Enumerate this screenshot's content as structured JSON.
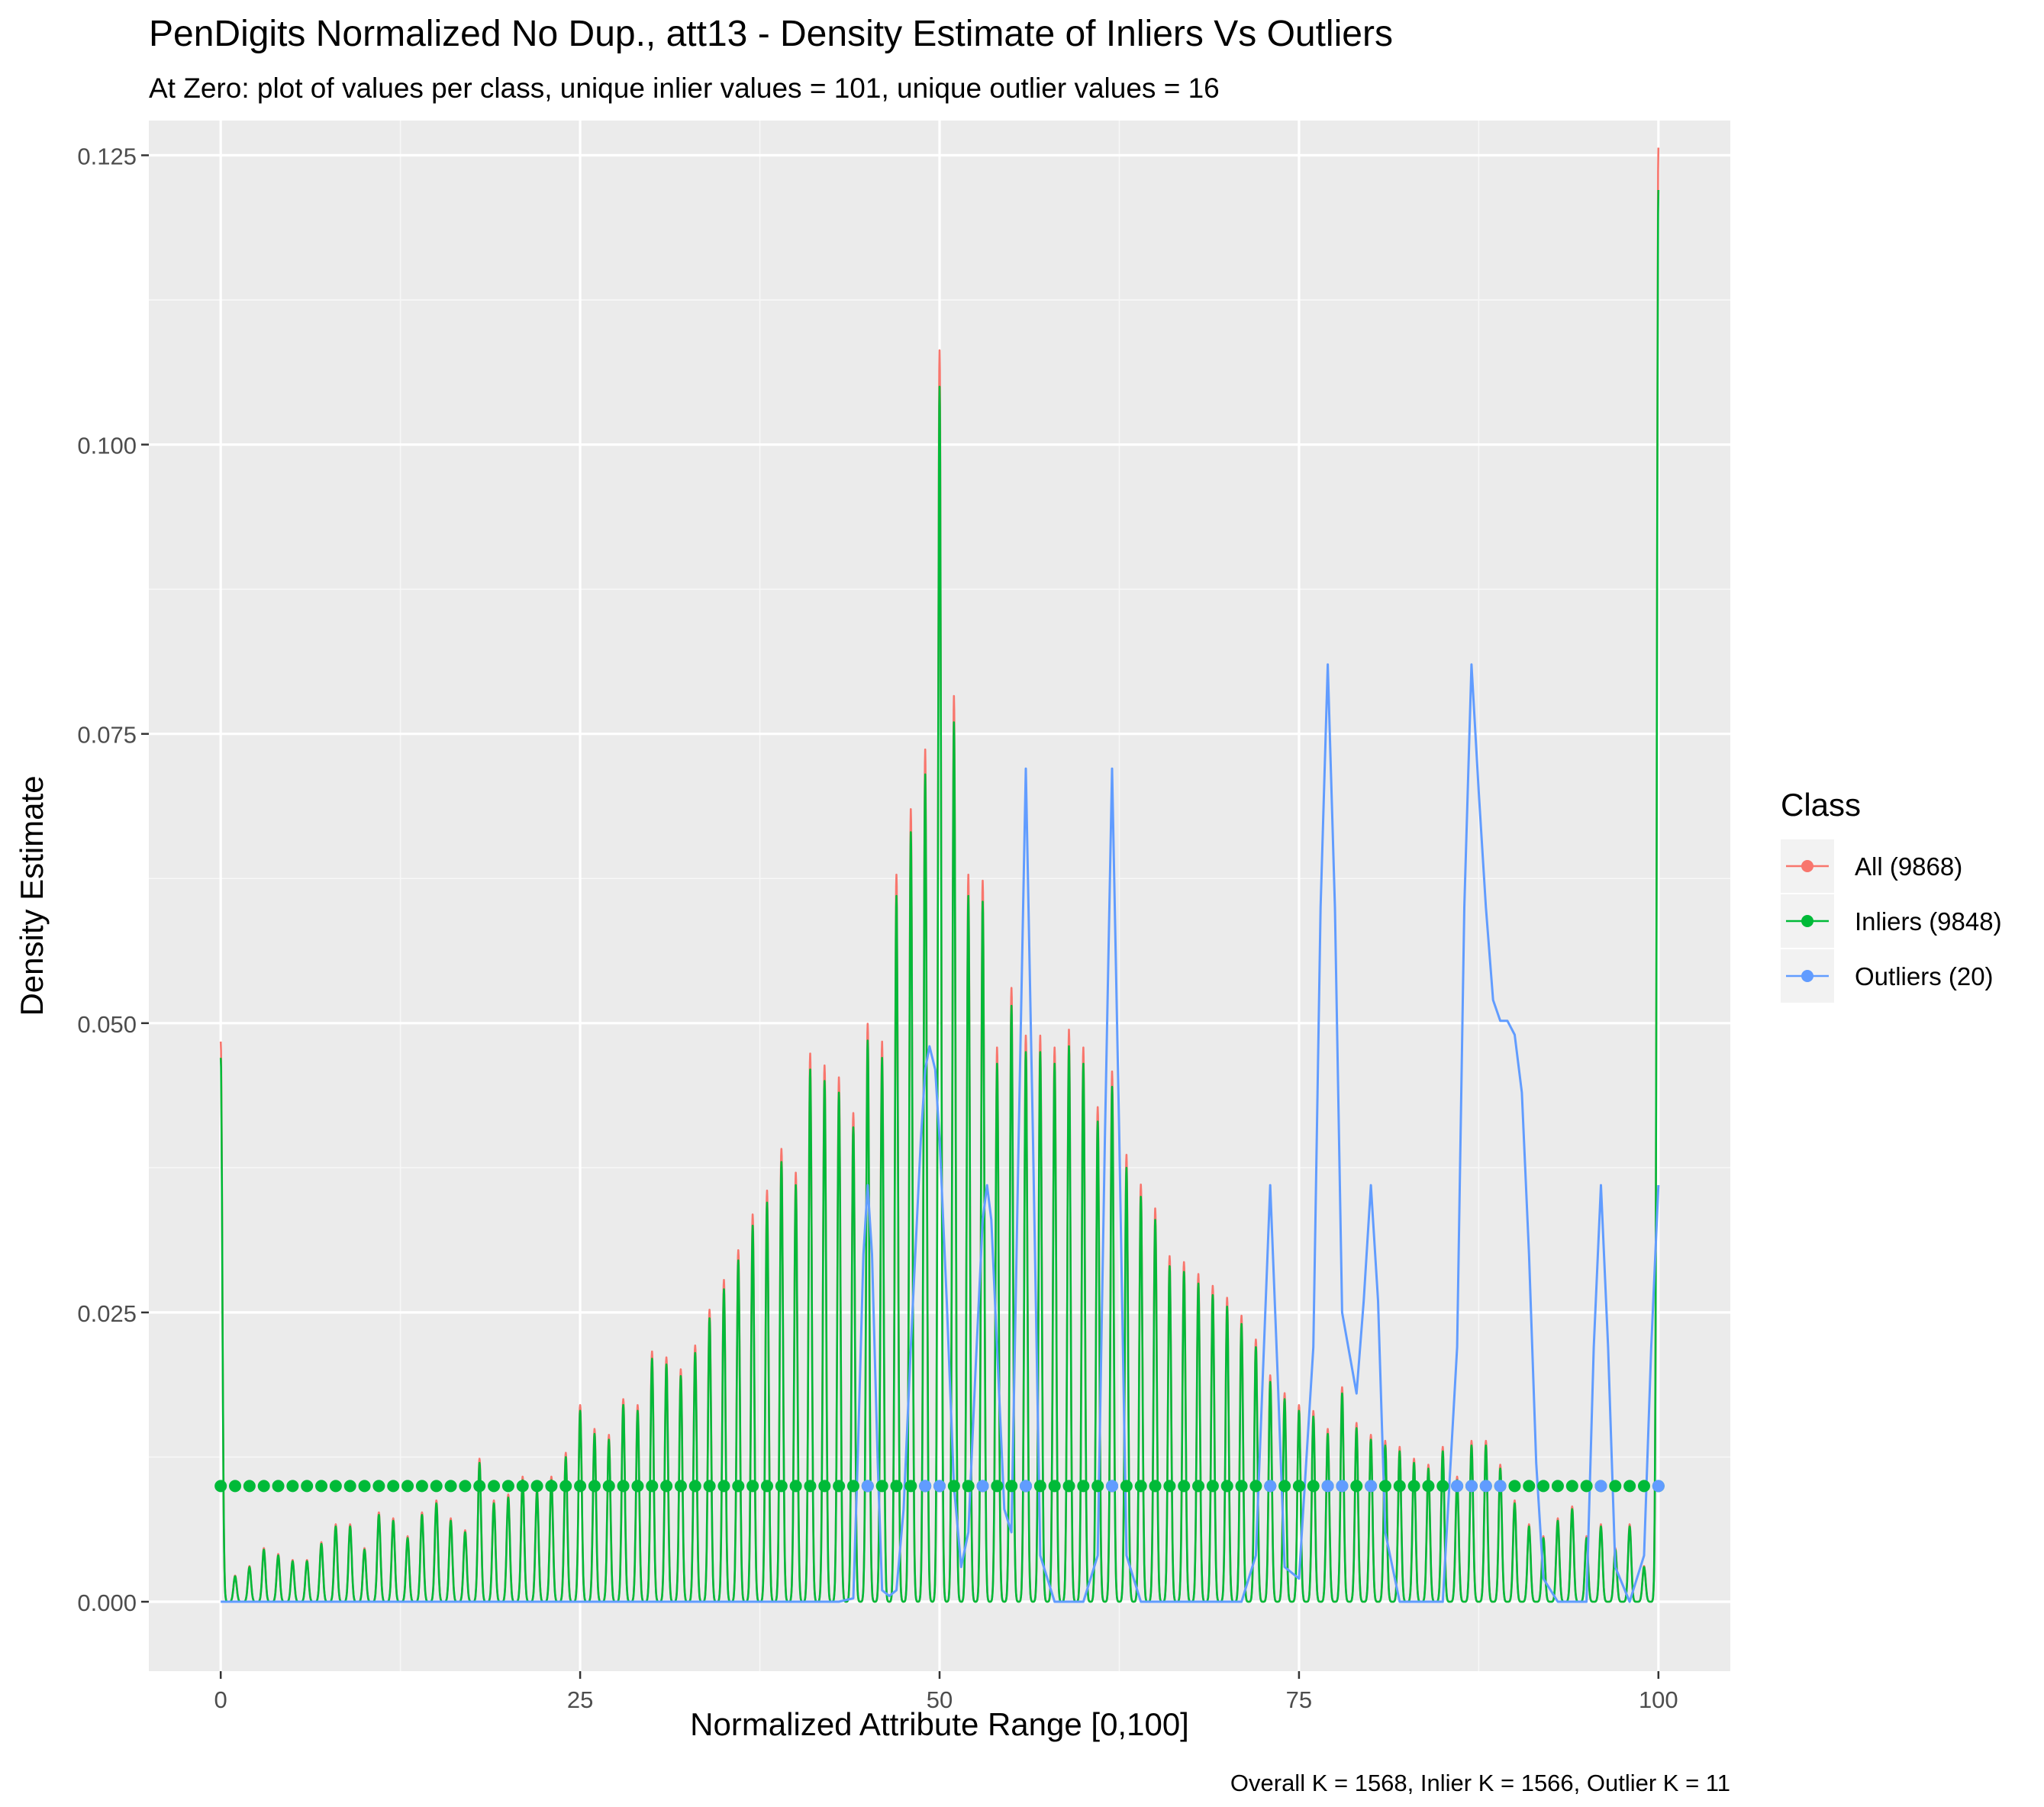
{
  "chart_data": {
    "type": "line",
    "title": "PenDigits Normalized No Dup., att13 - Density Estimate of Inliers Vs Outliers",
    "subtitle": "At Zero: plot of values per class, unique inlier values = 101, unique outlier values = 16",
    "xlabel": "Normalized Attribute Range [0,100]",
    "ylabel": "Density Estimate",
    "caption": "Overall K = 1568, Inlier K = 1566, Outlier K = 11",
    "xlim": [
      -5,
      105
    ],
    "ylim": [
      -0.006,
      0.128
    ],
    "x_ticks": [
      0,
      25,
      50,
      75,
      100
    ],
    "x_tick_labels": [
      "0",
      "25",
      "50",
      "75",
      "100"
    ],
    "y_ticks": [
      0,
      0.025,
      0.05,
      0.075,
      0.1,
      0.125
    ],
    "y_tick_labels": [
      "0.000",
      "0.025",
      "0.050",
      "0.075",
      "0.100",
      "0.125"
    ],
    "grid": true,
    "legend": {
      "title": "Class",
      "position": "right",
      "entries": [
        {
          "label": "All (9868)",
          "color": "#F8766D"
        },
        {
          "label": "Inliers (9848)",
          "color": "#00BA38"
        },
        {
          "label": "Outliers (20)",
          "color": "#619CFF"
        }
      ]
    },
    "colors": {
      "all": "#F8766D",
      "inliers": "#00BA38",
      "outliers": "#619CFF"
    },
    "series": [
      {
        "name": "Inliers (9848)",
        "kind": "density-spikes",
        "x": [
          0,
          1,
          2,
          3,
          4,
          5,
          6,
          7,
          8,
          9,
          10,
          11,
          12,
          13,
          14,
          15,
          16,
          17,
          18,
          19,
          20,
          21,
          22,
          23,
          24,
          25,
          26,
          27,
          28,
          29,
          30,
          31,
          32,
          33,
          34,
          35,
          36,
          37,
          38,
          39,
          40,
          41,
          42,
          43,
          44,
          45,
          46,
          47,
          48,
          49,
          50,
          51,
          52,
          53,
          54,
          55,
          56,
          57,
          58,
          59,
          60,
          61,
          62,
          63,
          64,
          65,
          66,
          67,
          68,
          69,
          70,
          71,
          72,
          73,
          74,
          75,
          76,
          77,
          78,
          79,
          80,
          81,
          82,
          83,
          84,
          85,
          86,
          87,
          88,
          89,
          90,
          91,
          92,
          93,
          94,
          95,
          96,
          97,
          98,
          99,
          100
        ],
        "peaks": [
          0.047,
          0.0022,
          0.003,
          0.0045,
          0.004,
          0.0035,
          0.0035,
          0.005,
          0.0065,
          0.0065,
          0.0045,
          0.0075,
          0.007,
          0.0055,
          0.0075,
          0.0085,
          0.007,
          0.006,
          0.012,
          0.0085,
          0.009,
          0.0105,
          0.0095,
          0.0105,
          0.0125,
          0.0165,
          0.0145,
          0.014,
          0.017,
          0.0165,
          0.021,
          0.0205,
          0.0195,
          0.0215,
          0.0245,
          0.027,
          0.0295,
          0.0325,
          0.0345,
          0.038,
          0.036,
          0.046,
          0.045,
          0.044,
          0.041,
          0.0485,
          0.047,
          0.061,
          0.0665,
          0.0715,
          0.105,
          0.076,
          0.061,
          0.0605,
          0.0465,
          0.0515,
          0.0475,
          0.0475,
          0.0465,
          0.048,
          0.0465,
          0.0415,
          0.0445,
          0.0375,
          0.035,
          0.033,
          0.029,
          0.0285,
          0.0275,
          0.0265,
          0.0255,
          0.024,
          0.022,
          0.019,
          0.0175,
          0.0165,
          0.016,
          0.0145,
          0.018,
          0.015,
          0.014,
          0.0135,
          0.013,
          0.012,
          0.0115,
          0.013,
          0.0105,
          0.0135,
          0.0135,
          0.0115,
          0.0085,
          0.0065,
          0.0055,
          0.007,
          0.008,
          0.0055,
          0.0065,
          0.0045,
          0.0065,
          0.003,
          0.122
        ]
      },
      {
        "name": "Outliers (20)",
        "kind": "density-curve",
        "points": [
          [
            0,
            0
          ],
          [
            43,
            0
          ],
          [
            44,
            0.0003
          ],
          [
            44.3,
            0.012
          ],
          [
            44.7,
            0.03
          ],
          [
            45,
            0.036
          ],
          [
            45.3,
            0.03
          ],
          [
            45.7,
            0.012
          ],
          [
            46,
            0.001
          ],
          [
            46.5,
            0.0005
          ],
          [
            47,
            0.001
          ],
          [
            47.5,
            0.008
          ],
          [
            48,
            0.022
          ],
          [
            48.7,
            0.04
          ],
          [
            49,
            0.046
          ],
          [
            49.3,
            0.048
          ],
          [
            49.7,
            0.046
          ],
          [
            50,
            0.04
          ],
          [
            50.5,
            0.026
          ],
          [
            51,
            0.01
          ],
          [
            51.5,
            0.003
          ],
          [
            52,
            0.006
          ],
          [
            52.5,
            0.02
          ],
          [
            53,
            0.033
          ],
          [
            53.3,
            0.036
          ],
          [
            53.6,
            0.033
          ],
          [
            54,
            0.022
          ],
          [
            54.5,
            0.008
          ],
          [
            55,
            0.006
          ],
          [
            55.5,
            0.04
          ],
          [
            56,
            0.072
          ],
          [
            56.5,
            0.04
          ],
          [
            57,
            0.004
          ],
          [
            58,
            0
          ],
          [
            60,
            0
          ],
          [
            61,
            0.004
          ],
          [
            61.5,
            0.04
          ],
          [
            62,
            0.072
          ],
          [
            62.5,
            0.04
          ],
          [
            63,
            0.004
          ],
          [
            64,
            0
          ],
          [
            71,
            0
          ],
          [
            72,
            0.004
          ],
          [
            72.5,
            0.02
          ],
          [
            73,
            0.036
          ],
          [
            73.5,
            0.02
          ],
          [
            74,
            0.003
          ],
          [
            75,
            0.002
          ],
          [
            76,
            0.022
          ],
          [
            76.5,
            0.06
          ],
          [
            77,
            0.081
          ],
          [
            77.5,
            0.06
          ],
          [
            78,
            0.025
          ],
          [
            79,
            0.018
          ],
          [
            79.5,
            0.026
          ],
          [
            80,
            0.036
          ],
          [
            80.5,
            0.026
          ],
          [
            81,
            0.006
          ],
          [
            82,
            0
          ],
          [
            85,
            0
          ],
          [
            86,
            0.022
          ],
          [
            86.5,
            0.06
          ],
          [
            87,
            0.081
          ],
          [
            87.5,
            0.07
          ],
          [
            88,
            0.06
          ],
          [
            88.5,
            0.052
          ],
          [
            89,
            0.0502
          ],
          [
            89.5,
            0.0502
          ],
          [
            90,
            0.049
          ],
          [
            90.5,
            0.044
          ],
          [
            91,
            0.03
          ],
          [
            91.5,
            0.012
          ],
          [
            92,
            0.002
          ],
          [
            93,
            0
          ],
          [
            95,
            0
          ],
          [
            95.5,
            0.022
          ],
          [
            96,
            0.036
          ],
          [
            96.5,
            0.022
          ],
          [
            97,
            0.003
          ],
          [
            98,
            0
          ],
          [
            99,
            0.004
          ],
          [
            99.5,
            0.022
          ],
          [
            100,
            0.036
          ]
        ]
      },
      {
        "name": "All (9868)",
        "kind": "nearly-identical-to-inliers"
      }
    ],
    "zero_markers": {
      "y": 0.01,
      "inlier_count": 101,
      "outlier_x": [
        45,
        49,
        50,
        53,
        56,
        62,
        73,
        77,
        78,
        80,
        86,
        87,
        88,
        89,
        96,
        100
      ]
    }
  }
}
